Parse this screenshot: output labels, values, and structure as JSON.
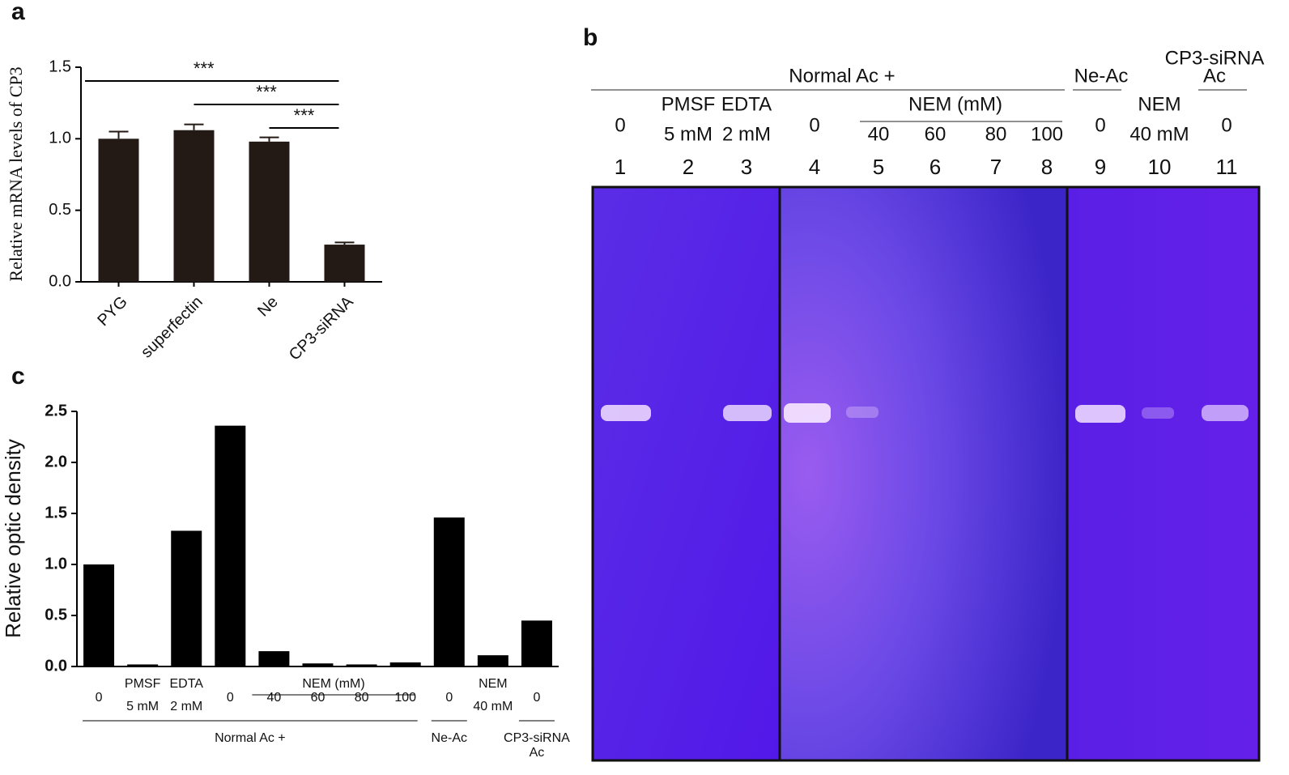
{
  "chart_data": [
    {
      "type": "bar",
      "panel": "a",
      "ylabel": "Relative mRNA levels of CP3",
      "categories": [
        "PYG",
        "superfectin",
        "Ne",
        "CP3-siRNA"
      ],
      "values": [
        1.0,
        1.06,
        0.98,
        0.26
      ],
      "errors": [
        0.05,
        0.04,
        0.03,
        0.015
      ],
      "color": "#231a15",
      "ylim": [
        0,
        1.5
      ],
      "yticks": [
        {
          "value": 0,
          "label": "0.0"
        },
        {
          "value": 0.5,
          "label": "0.5"
        },
        {
          "value": 1,
          "label": "1.0"
        },
        {
          "value": 1.5,
          "label": "1.5"
        }
      ],
      "annotations": [
        {
          "text": "***",
          "from": 0,
          "to": 3
        },
        {
          "text": "***",
          "from": 1,
          "to": 3
        },
        {
          "text": "***",
          "from": 2,
          "to": 3
        }
      ]
    },
    {
      "type": "bar",
      "panel": "c",
      "ylabel": "Relative optic density",
      "categories": [
        [
          "0"
        ],
        [
          "PMSF",
          "5 mM"
        ],
        [
          "EDTA",
          "2 mM"
        ],
        [
          "0"
        ],
        [
          "40"
        ],
        [
          "60"
        ],
        [
          "80"
        ],
        [
          "100"
        ],
        [
          "0"
        ],
        [
          "NEM",
          "40 mM"
        ],
        [
          "0"
        ]
      ],
      "values": [
        1.0,
        0.02,
        1.33,
        2.36,
        0.15,
        0.03,
        0.02,
        0.04,
        1.46,
        0.11,
        0.45
      ],
      "color": "#000000",
      "ylim": [
        0,
        2.5
      ],
      "yticks": [
        {
          "value": 0,
          "label": "0.0"
        },
        {
          "value": 0.5,
          "label": "0.5"
        },
        {
          "value": 1,
          "label": "1.0"
        },
        {
          "value": 1.5,
          "label": "1.5"
        },
        {
          "value": 2,
          "label": "2.0"
        },
        {
          "value": 2.5,
          "label": "2.5"
        }
      ],
      "groups": [
        {
          "label": [
            "NEM (mM)"
          ],
          "span": [
            4,
            7
          ]
        },
        {
          "label": [
            "Normal Ac +"
          ],
          "span": [
            0,
            7
          ]
        },
        {
          "label": [
            "Ne-Ac"
          ],
          "span": [
            8,
            8
          ]
        },
        {
          "label": [
            "CP3-siRNA",
            "Ac"
          ],
          "span": [
            10,
            10
          ]
        }
      ]
    }
  ],
  "gel": {
    "panel": "b",
    "header": "Normal Ac +",
    "ne": "Ne-Ac",
    "sirna": [
      "CP3-siRNA",
      "Ac"
    ],
    "nem": "NEM (mM)",
    "lanes": [
      {
        "treatment": [
          "0"
        ],
        "number": "1"
      },
      {
        "treatment": [
          "PMSF",
          "5 mM"
        ],
        "number": "2"
      },
      {
        "treatment": [
          "EDTA",
          "2 mM"
        ],
        "number": "3"
      },
      {
        "treatment": [
          "0"
        ],
        "number": "4"
      },
      {
        "treatment": [
          "40"
        ],
        "number": "5"
      },
      {
        "treatment": [
          "60"
        ],
        "number": "6"
      },
      {
        "treatment": [
          "80"
        ],
        "number": "7"
      },
      {
        "treatment": [
          "100"
        ],
        "number": "8"
      },
      {
        "treatment": [
          "0"
        ],
        "number": "9"
      },
      {
        "treatment": [
          "NEM",
          "40 mM"
        ],
        "number": "10"
      },
      {
        "treatment": [
          "0"
        ],
        "number": "11"
      }
    ]
  }
}
